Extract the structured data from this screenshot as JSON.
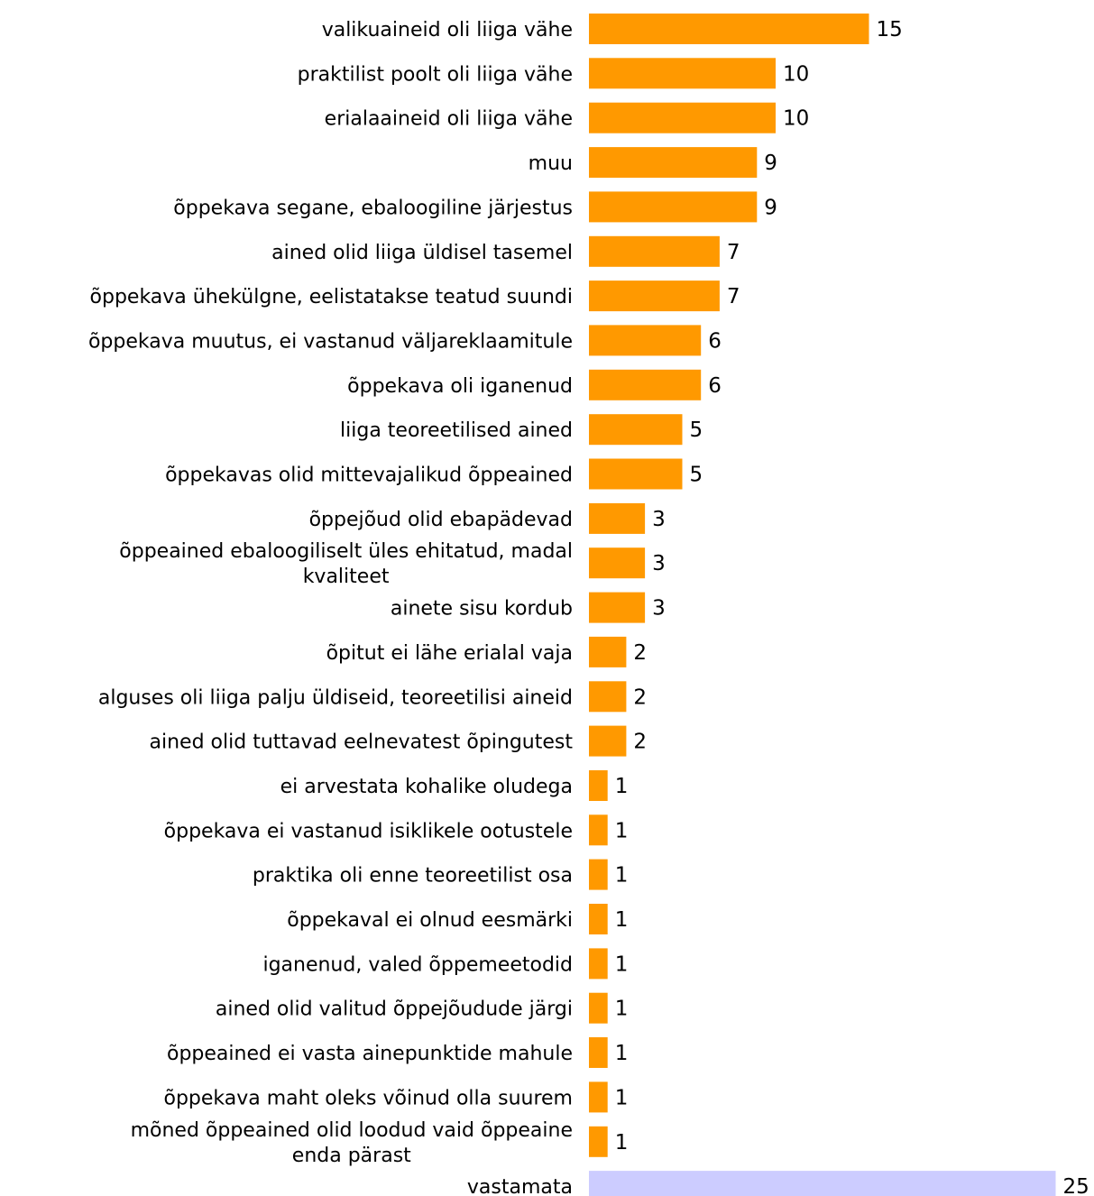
{
  "chart_data": {
    "type": "bar",
    "orientation": "horizontal",
    "title": "",
    "xlabel": "",
    "ylabel": "",
    "grid": false,
    "legend": "none",
    "xlim": [
      0,
      25
    ],
    "bar_color": "#FF9900",
    "highlight_color": "#CCCCFF",
    "categories": [
      "valikuaineid oli liiga vähe",
      "praktilist poolt oli liiga vähe",
      "erialaaineid oli liiga vähe",
      "muu",
      "õppekava segane, ebaloogiline järjestus",
      "ained olid liiga üldisel tasemel",
      "õppekava ühekülgne, eelistatakse teatud suundi",
      "õppekava muutus, ei vastanud väljareklaamitule",
      "õppekava oli iganenud",
      "liiga teoreetilised ained",
      "õppekavas olid mittevajalikud õppeained",
      "õppejõud olid ebapädevad",
      "õppeained ebaloogiliselt üles ehitatud, madal kvaliteet",
      "ainete sisu kordub",
      "õpitut ei lähe erialal vaja",
      "alguses oli liiga palju üldiseid, teoreetilisi aineid",
      "ained olid tuttavad eelnevatest õpingutest",
      "ei arvestata kohalike oludega",
      "õppekava ei vastanud isiklikele ootustele",
      "praktika oli enne teoreetilist osa",
      "õppekaval ei olnud eesmärki",
      "iganenud, valed  õppemeetodid",
      "ained olid valitud õppejõudude järgi",
      "õppeained ei vasta ainepunktide mahule",
      "õppekava maht oleks võinud olla suurem",
      "mõned õppeained olid loodud vaid õppeaine enda pärast",
      "vastamata"
    ],
    "label_lines": [
      [
        "valikuaineid oli liiga vähe"
      ],
      [
        "praktilist poolt oli liiga vähe"
      ],
      [
        "erialaaineid oli liiga vähe"
      ],
      [
        "muu"
      ],
      [
        "õppekava segane, ebaloogiline järjestus"
      ],
      [
        "ained olid liiga üldisel tasemel"
      ],
      [
        "õppekava ühekülgne, eelistatakse teatud suundi"
      ],
      [
        "õppekava muutus, ei vastanud väljareklaamitule"
      ],
      [
        "õppekava oli iganenud"
      ],
      [
        "liiga teoreetilised ained"
      ],
      [
        "õppekavas olid mittevajalikud õppeained"
      ],
      [
        "õppejõud olid ebapädevad"
      ],
      [
        "õppeained ebaloogiliselt üles ehitatud, madal",
        "kvaliteet"
      ],
      [
        "ainete sisu kordub"
      ],
      [
        "õpitut ei lähe erialal vaja"
      ],
      [
        "alguses oli liiga palju üldiseid, teoreetilisi aineid"
      ],
      [
        "ained olid tuttavad eelnevatest õpingutest"
      ],
      [
        "ei arvestata kohalike oludega"
      ],
      [
        "õppekava ei vastanud isiklikele ootustele"
      ],
      [
        "praktika oli enne teoreetilist osa"
      ],
      [
        "õppekaval ei olnud eesmärki"
      ],
      [
        "iganenud, valed  õppemeetodid"
      ],
      [
        "ained olid valitud õppejõudude järgi"
      ],
      [
        "õppeained ei vasta ainepunktide mahule"
      ],
      [
        "õppekava maht oleks võinud olla suurem"
      ],
      [
        "mõned õppeained olid loodud vaid õppeaine",
        "enda pärast"
      ],
      [
        "vastamata"
      ]
    ],
    "values": [
      15,
      10,
      10,
      9,
      9,
      7,
      7,
      6,
      6,
      5,
      5,
      3,
      3,
      3,
      2,
      2,
      2,
      1,
      1,
      1,
      1,
      1,
      1,
      1,
      1,
      1,
      25
    ],
    "highlighted": [
      "vastamata"
    ]
  }
}
